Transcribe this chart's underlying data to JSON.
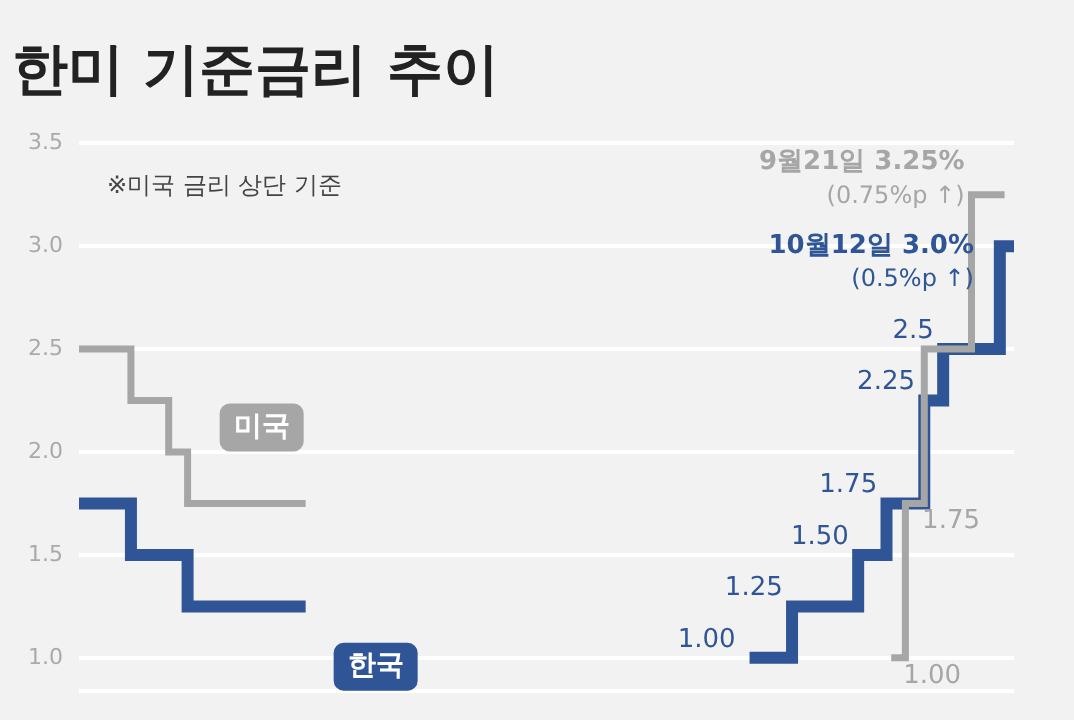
{
  "chart_data": {
    "type": "step",
    "title": "한미 기준금리 추이",
    "categories": [
      null,
      null,
      null,
      null,
      null,
      null,
      null,
      null,
      null,
      null,
      null,
      null,
      null,
      null,
      null,
      null,
      null,
      null,
      null,
      null,
      null,
      null,
      null,
      null,
      null,
      null,
      null,
      null,
      null,
      null,
      null,
      null,
      null,
      null,
      null,
      null,
      null,
      null,
      null,
      null,
      null,
      null,
      null,
      null,
      null,
      null,
      null,
      null,
      null,
      null,
      null,
      null,
      null,
      null,
      null,
      null,
      null,
      null,
      null,
      null,
      null,
      null,
      null,
      null,
      null,
      null,
      null,
      null,
      null,
      null,
      null,
      null,
      null,
      null,
      null,
      null,
      null,
      null,
      null,
      null,
      null,
      null,
      null,
      null,
      null,
      null,
      null,
      null,
      null,
      null,
      null,
      null,
      null,
      null,
      null,
      null,
      null,
      null,
      null,
      null
    ],
    "series": [
      {
        "name": "미국",
        "color": "#a6a6a6",
        "values": [
          2.5,
          2.5,
          2.5,
          2.5,
          2.5,
          2.5,
          2.25,
          2.25,
          2.25,
          2.25,
          2,
          2,
          1.75,
          1.75,
          1.75,
          1.75,
          1.75,
          1.75,
          1.75,
          1.75,
          1.75,
          1.75,
          1.75,
          1.75,
          1.75,
          null,
          null,
          null,
          null,
          null,
          null,
          null,
          null,
          null,
          null,
          null,
          null,
          null,
          null,
          null,
          null,
          null,
          null,
          null,
          null,
          null,
          null,
          null,
          null,
          null,
          null,
          null,
          null,
          null,
          null,
          null,
          null,
          null,
          null,
          null,
          null,
          null,
          null,
          null,
          null,
          null,
          null,
          null,
          null,
          null,
          null,
          null,
          null,
          null,
          null,
          null,
          null,
          null,
          null,
          null,
          null,
          null,
          null,
          null,
          null,
          null,
          1,
          1,
          1.75,
          1.75,
          2.5,
          2.5,
          2.5,
          2.5,
          2.5,
          3.25,
          3.25,
          3.25,
          3.25,
          null
        ],
        "value_labels": [
          null,
          null,
          null,
          null,
          null,
          null,
          null,
          null,
          null,
          null,
          null,
          null,
          null,
          null,
          null,
          null,
          null,
          null,
          null,
          null,
          null,
          null,
          null,
          null,
          null,
          null,
          null,
          null,
          null,
          null,
          null,
          null,
          null,
          null,
          null,
          null,
          null,
          null,
          null,
          null,
          null,
          null,
          null,
          null,
          null,
          null,
          null,
          null,
          null,
          null,
          null,
          null,
          null,
          null,
          null,
          null,
          null,
          null,
          null,
          null,
          null,
          null,
          null,
          null,
          null,
          null,
          null,
          null,
          null,
          null,
          null,
          null,
          null,
          null,
          null,
          null,
          null,
          null,
          null,
          null,
          null,
          null,
          null,
          null,
          null,
          null,
          "1.00",
          null,
          "1.75",
          null,
          null,
          null,
          null,
          null,
          null,
          null,
          null,
          null,
          null,
          null
        ]
      },
      {
        "name": "한국",
        "color": "#2f5597",
        "values": [
          1.75,
          1.75,
          1.75,
          1.75,
          1.75,
          1.75,
          1.5,
          1.5,
          1.5,
          1.5,
          1.5,
          1.5,
          1.25,
          1.25,
          1.25,
          1.25,
          1.25,
          1.25,
          1.25,
          1.25,
          1.25,
          1.25,
          1.25,
          1.25,
          1.25,
          null,
          null,
          null,
          null,
          null,
          null,
          null,
          null,
          null,
          null,
          null,
          null,
          null,
          null,
          null,
          null,
          null,
          null,
          null,
          null,
          null,
          null,
          null,
          null,
          null,
          null,
          null,
          null,
          null,
          null,
          null,
          null,
          null,
          null,
          null,
          null,
          null,
          null,
          null,
          null,
          null,
          null,
          null,
          null,
          null,
          null,
          1,
          1,
          1,
          1,
          1,
          1.25,
          1.25,
          1.25,
          1.25,
          1.25,
          1.25,
          1.25,
          1.5,
          1.5,
          1.5,
          1.75,
          1.75,
          1.75,
          1.75,
          2.25,
          2.25,
          2.5,
          2.5,
          2.5,
          2.5,
          2.5,
          2.5,
          3,
          3
        ],
        "value_labels": [
          null,
          null,
          null,
          null,
          null,
          null,
          null,
          null,
          null,
          null,
          null,
          null,
          null,
          null,
          null,
          null,
          null,
          null,
          null,
          null,
          null,
          null,
          null,
          null,
          null,
          null,
          null,
          null,
          null,
          null,
          null,
          null,
          null,
          null,
          null,
          null,
          null,
          null,
          null,
          null,
          null,
          null,
          null,
          null,
          null,
          null,
          null,
          null,
          null,
          null,
          null,
          null,
          null,
          null,
          null,
          null,
          null,
          null,
          null,
          null,
          null,
          null,
          null,
          null,
          null,
          null,
          null,
          null,
          null,
          null,
          null,
          "1.00",
          null,
          null,
          null,
          null,
          "1.25",
          null,
          null,
          null,
          null,
          null,
          null,
          "1.50",
          null,
          null,
          "1.75",
          null,
          null,
          null,
          "2.25",
          null,
          "2.5",
          null,
          null,
          null,
          null,
          null,
          null,
          null
        ]
      }
    ],
    "ylim": [
      0.84,
      3.5
    ],
    "yticks": [
      {
        "value": 0.84,
        "label": null
      },
      {
        "value": 1,
        "label": "1.0"
      },
      1.5,
      {
        "value": 2,
        "label": "2.0"
      },
      2.5,
      {
        "value": 3,
        "label": "3.0"
      },
      3.5
    ],
    "tick_labels": "y",
    "grid": "y",
    "legend": false,
    "annotations": [
      "※미국 금리 상단 기준",
      "9월21일 3.25%\n(0.75%p ↑)",
      "10월12일 3.0%\n(0.5%p ↑)"
    ]
  }
}
